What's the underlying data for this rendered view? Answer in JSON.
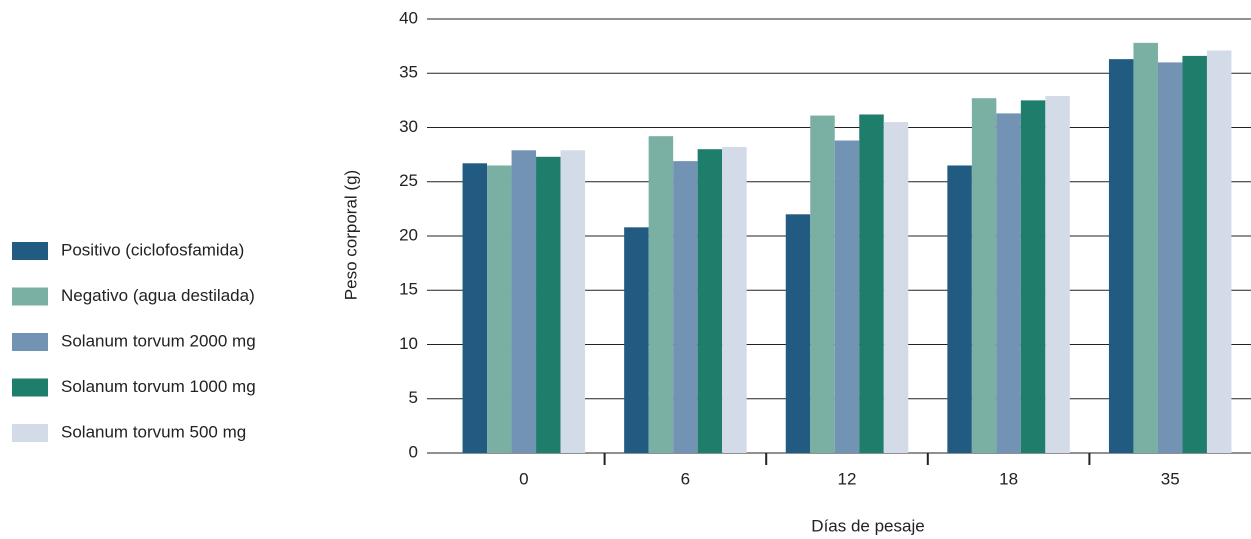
{
  "chart_data": {
    "type": "bar",
    "x_label": "Días de pesaje",
    "y_label": "Peso corporal (g)",
    "categories": [
      "0",
      "6",
      "12",
      "18",
      "35"
    ],
    "series": [
      {
        "name": "Positivo (ciclofosfamida)",
        "color": "#215b82",
        "values": [
          26.7,
          20.8,
          22.0,
          26.5,
          36.3
        ]
      },
      {
        "name": "Negativo (agua destilada)",
        "color": "#7aafa3",
        "values": [
          26.5,
          29.2,
          31.1,
          32.7,
          37.8
        ]
      },
      {
        "name": "Solanum torvum 2000 mg",
        "color": "#7393b5",
        "values": [
          27.9,
          26.9,
          28.8,
          31.3,
          36.0
        ]
      },
      {
        "name": "Solanum torvum 1000 mg",
        "color": "#1f7d6b",
        "values": [
          27.3,
          28.0,
          31.2,
          32.5,
          36.6
        ]
      },
      {
        "name": "Solanum torvum 500 mg",
        "color": "#d3dbe8",
        "values": [
          27.9,
          28.2,
          30.5,
          32.9,
          37.1
        ]
      }
    ],
    "ylim": [
      0,
      40
    ],
    "yticks": [
      0,
      5,
      10,
      15,
      20,
      25,
      30,
      35,
      40
    ],
    "grid": true,
    "legend": "left"
  }
}
